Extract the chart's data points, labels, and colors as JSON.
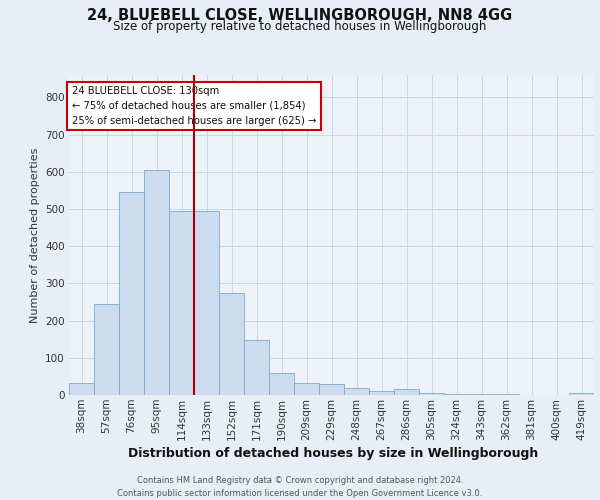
{
  "title_line1": "24, BLUEBELL CLOSE, WELLINGBOROUGH, NN8 4GG",
  "title_line2": "Size of property relative to detached houses in Wellingborough",
  "xlabel": "Distribution of detached houses by size in Wellingborough",
  "ylabel": "Number of detached properties",
  "footer": "Contains HM Land Registry data © Crown copyright and database right 2024.\nContains public sector information licensed under the Open Government Licence v3.0.",
  "bar_labels": [
    "38sqm",
    "57sqm",
    "76sqm",
    "95sqm",
    "114sqm",
    "133sqm",
    "152sqm",
    "171sqm",
    "190sqm",
    "209sqm",
    "229sqm",
    "248sqm",
    "267sqm",
    "286sqm",
    "305sqm",
    "324sqm",
    "343sqm",
    "362sqm",
    "381sqm",
    "400sqm",
    "419sqm"
  ],
  "bar_values": [
    32,
    245,
    545,
    605,
    495,
    495,
    275,
    148,
    60,
    32,
    30,
    18,
    10,
    15,
    5,
    3,
    2,
    2,
    1,
    1,
    5
  ],
  "bar_color": "#ccdcee",
  "bar_edge_color": "#7aaacf",
  "vline_index": 5,
  "vline_color": "#aa0000",
  "annotation_text": "24 BLUEBELL CLOSE: 130sqm\n← 75% of detached houses are smaller (1,854)\n25% of semi-detached houses are larger (625) →",
  "annotation_box_facecolor": "#ffffff",
  "annotation_box_edgecolor": "#cc0000",
  "ylim_max": 860,
  "yticks": [
    0,
    100,
    200,
    300,
    400,
    500,
    600,
    700,
    800
  ],
  "bg_color": "#e8eef5",
  "plot_bg_color": "#edf2f8",
  "grid_color": "#c8d8e8",
  "title1_fontsize": 10.5,
  "title2_fontsize": 8.5,
  "ylabel_fontsize": 8,
  "xlabel_fontsize": 9,
  "tick_fontsize": 7.5,
  "footer_fontsize": 6.0
}
